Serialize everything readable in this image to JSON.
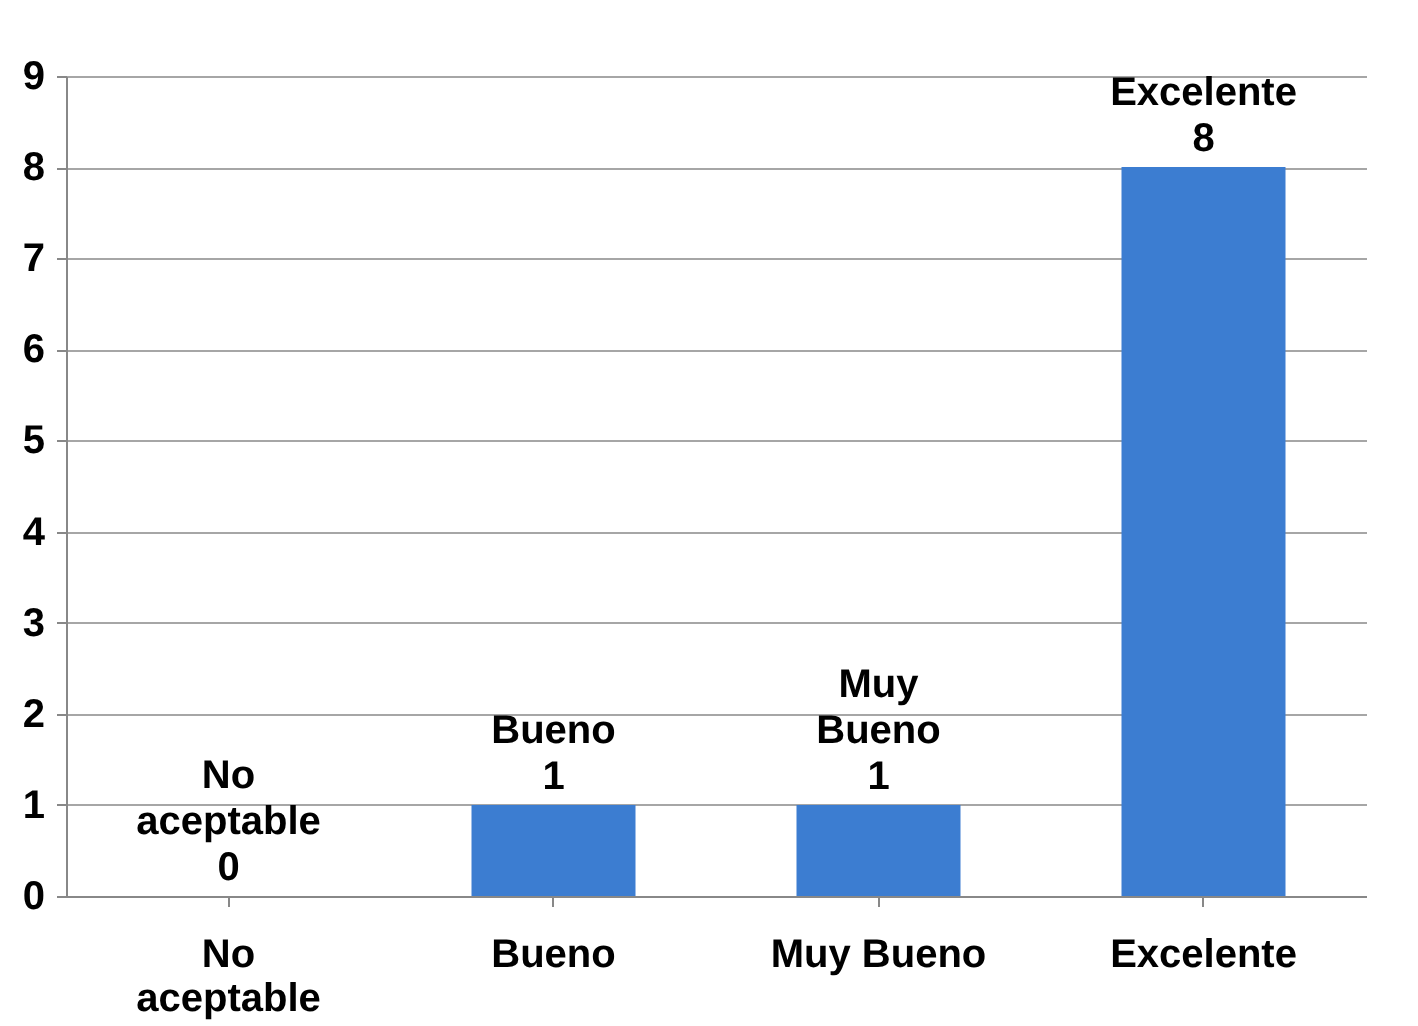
{
  "chart_data": {
    "type": "bar",
    "categories": [
      "No aceptable",
      "Bueno",
      "Muy Bueno",
      "Excelente"
    ],
    "values": [
      0,
      1,
      1,
      8
    ],
    "color": "#3c7dd1",
    "ylim": [
      0,
      9
    ],
    "yticks": [
      0,
      1,
      2,
      3,
      4,
      5,
      6,
      7,
      8,
      9
    ],
    "grid": "y",
    "data_labels": true
  }
}
